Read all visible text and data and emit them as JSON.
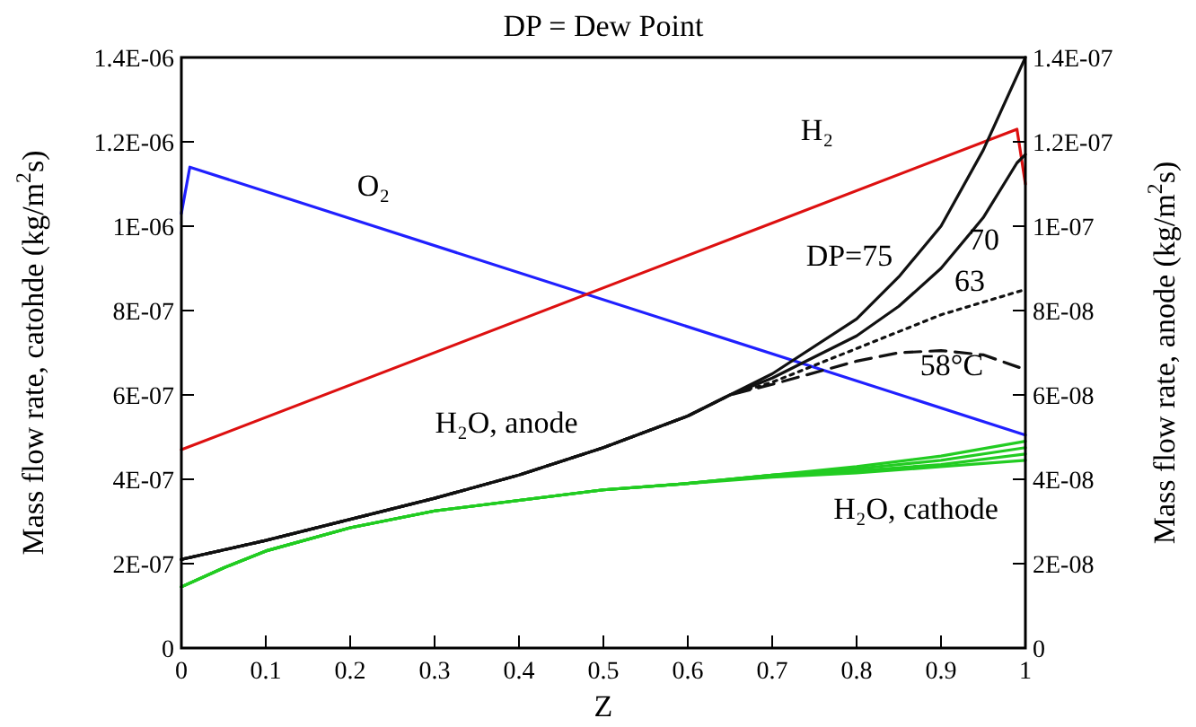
{
  "chart_data": {
    "type": "line",
    "title": "DP = Dew Point",
    "xlabel": "Z",
    "ylabel": "Mass flow rate, catohde (kg/m$^{2}$s)",
    "y2label": "Mass flow rate, anode (kg/m$^{2}$s)",
    "xlim": [
      0,
      1
    ],
    "xticks": [
      0,
      0.1,
      0.2,
      0.3,
      0.4,
      0.5,
      0.6,
      0.7,
      0.8,
      0.9,
      1
    ],
    "ylim": [
      0,
      1.4e-06
    ],
    "yticks": [
      0,
      {
        "value": 2e-07,
        "label": "2E-07"
      },
      {
        "value": 4e-07,
        "label": "4E-07"
      },
      {
        "value": 6e-07,
        "label": "6E-07"
      },
      {
        "value": 8e-07,
        "label": "8E-07"
      },
      {
        "value": 1e-06,
        "label": "1E-06"
      },
      {
        "value": 1.2e-06,
        "label": "1.2E-06"
      },
      {
        "value": 1.4e-06,
        "label": "1.4E-06"
      }
    ],
    "y2lim": [
      0,
      1.4e-07
    ],
    "y2ticks": [
      0,
      {
        "value": 2e-08,
        "label": "2E-08"
      },
      {
        "value": 4e-08,
        "label": "4E-08"
      },
      {
        "value": 6e-08,
        "label": "6E-08"
      },
      {
        "value": 8e-08,
        "label": "8E-08"
      },
      {
        "value": 1e-07,
        "label": "1E-07"
      },
      {
        "value": 1.2e-07,
        "label": "1.2E-07"
      },
      {
        "value": 1.4e-07,
        "label": "1.4E-07"
      }
    ],
    "grid": false,
    "marker": "none",
    "series": [
      {
        "name": "O₂",
        "color": "#2020ff",
        "x": [
          0,
          0.01,
          1
        ],
        "values": [
          1.03e-06,
          1.14e-06,
          5.05e-07
        ]
      },
      {
        "name": "H₂",
        "color": "#dd1010",
        "axis": "y2",
        "x": [
          0,
          0.99,
          1
        ],
        "values": [
          4.7e-08,
          1.23e-07,
          1.1e-07
        ]
      },
      {
        "name": "DP=75",
        "color": "#111111",
        "axis": "y2",
        "x": [
          0,
          0.1,
          0.2,
          0.3,
          0.4,
          0.5,
          0.6,
          0.65,
          0.7,
          0.8,
          0.85,
          0.9,
          0.95,
          1
        ],
        "values": [
          2.1e-08,
          2.55e-08,
          3.05e-08,
          3.55e-08,
          4.1e-08,
          4.75e-08,
          5.5e-08,
          6e-08,
          6.5e-08,
          7.8e-08,
          8.8e-08,
          1e-07,
          1.18e-07,
          1.4e-07
        ]
      },
      {
        "name": "70",
        "color": "#111111",
        "axis": "y2",
        "x": [
          0,
          0.1,
          0.2,
          0.3,
          0.4,
          0.5,
          0.6,
          0.65,
          0.7,
          0.8,
          0.85,
          0.9,
          0.95,
          0.99,
          1
        ],
        "values": [
          2.1e-08,
          2.55e-08,
          3.05e-08,
          3.55e-08,
          4.1e-08,
          4.75e-08,
          5.5e-08,
          6e-08,
          6.4e-08,
          7.4e-08,
          8.1e-08,
          9e-08,
          1.02e-07,
          1.15e-07,
          1.17e-07
        ]
      },
      {
        "name": "63",
        "color": "#111111",
        "axis": "y2",
        "line_style": "dotted",
        "x": [
          0,
          0.1,
          0.2,
          0.3,
          0.4,
          0.5,
          0.6,
          0.65,
          0.7,
          0.8,
          0.9,
          1
        ],
        "values": [
          2.1e-08,
          2.55e-08,
          3.05e-08,
          3.55e-08,
          4.1e-08,
          4.75e-08,
          5.5e-08,
          6e-08,
          6.3e-08,
          7.1e-08,
          7.9e-08,
          8.5e-08
        ]
      },
      {
        "name": "58°C",
        "color": "#111111",
        "axis": "y2",
        "line_style": "dashed",
        "x": [
          0,
          0.1,
          0.2,
          0.3,
          0.4,
          0.5,
          0.6,
          0.65,
          0.7,
          0.8,
          0.85,
          0.9,
          0.95,
          1
        ],
        "values": [
          2.1e-08,
          2.55e-08,
          3.05e-08,
          3.55e-08,
          4.1e-08,
          4.75e-08,
          5.5e-08,
          6e-08,
          6.25e-08,
          6.8e-08,
          7e-08,
          7.05e-08,
          6.95e-08,
          6.6e-08
        ]
      },
      {
        "name": "H₂O, cathode",
        "color": "#22cc22",
        "x": [
          0,
          0.05,
          0.1,
          0.2,
          0.3,
          0.4,
          0.5,
          0.6,
          0.7,
          0.8,
          0.9,
          1
        ],
        "values": [
          1.45e-07,
          1.9e-07,
          2.3e-07,
          2.85e-07,
          3.25e-07,
          3.5e-07,
          3.75e-07,
          3.9e-07,
          4.1e-07,
          4.3e-07,
          4.55e-07,
          4.9e-07
        ]
      },
      {
        "color": "#22cc22",
        "x": [
          0,
          0.05,
          0.1,
          0.2,
          0.3,
          0.4,
          0.5,
          0.6,
          0.7,
          0.8,
          0.9,
          1
        ],
        "values": [
          1.45e-07,
          1.9e-07,
          2.3e-07,
          2.85e-07,
          3.25e-07,
          3.5e-07,
          3.75e-07,
          3.9e-07,
          4.1e-07,
          4.25e-07,
          4.45e-07,
          4.75e-07
        ]
      },
      {
        "color": "#22cc22",
        "x": [
          0,
          0.05,
          0.1,
          0.2,
          0.3,
          0.4,
          0.5,
          0.6,
          0.7,
          0.8,
          0.9,
          1
        ],
        "values": [
          1.45e-07,
          1.9e-07,
          2.3e-07,
          2.85e-07,
          3.25e-07,
          3.5e-07,
          3.75e-07,
          3.9e-07,
          4.1e-07,
          4.2e-07,
          4.35e-07,
          4.6e-07
        ]
      },
      {
        "color": "#22cc22",
        "x": [
          0,
          0.05,
          0.1,
          0.2,
          0.3,
          0.4,
          0.5,
          0.6,
          0.7,
          0.8,
          0.9,
          1
        ],
        "values": [
          1.45e-07,
          1.9e-07,
          2.3e-07,
          2.85e-07,
          3.25e-07,
          3.5e-07,
          3.75e-07,
          3.9e-07,
          4.05e-07,
          4.15e-07,
          4.3e-07,
          4.45e-07
        ]
      }
    ],
    "annotations": [
      "H₂O, anode"
    ]
  }
}
